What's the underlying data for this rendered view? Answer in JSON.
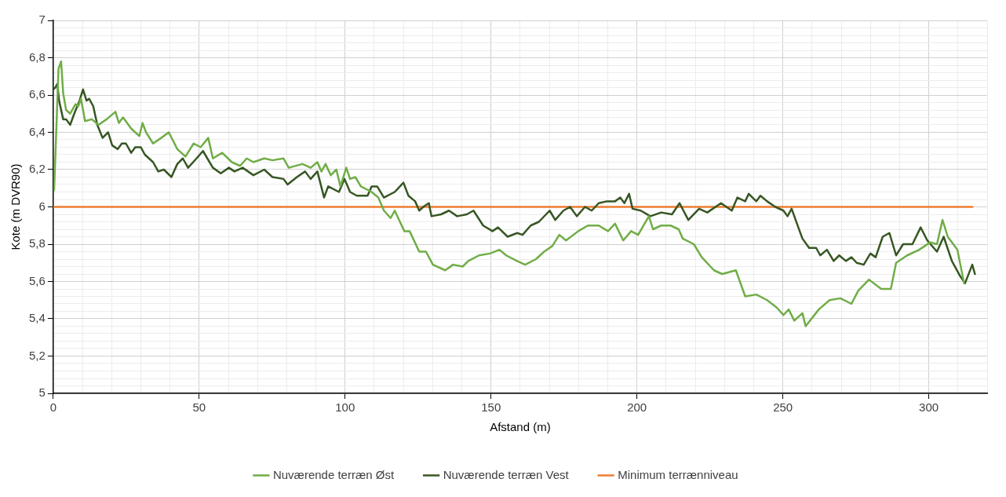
{
  "chart_data": {
    "type": "line",
    "xlabel": "Afstand (m)",
    "ylabel": "Kote (m DVR90)",
    "legend": "bottom",
    "grid": true,
    "marker": "none",
    "line_style": "solid",
    "xlim": [
      0,
      320
    ],
    "xticks": [
      0,
      {
        "value": 10,
        "label": null
      },
      {
        "value": 20,
        "label": null
      },
      {
        "value": 30,
        "label": null
      },
      {
        "value": 40,
        "label": null
      },
      50,
      {
        "value": 60,
        "label": null
      },
      {
        "value": 70,
        "label": null
      },
      {
        "value": 80,
        "label": null
      },
      {
        "value": 90,
        "label": null
      },
      100,
      {
        "value": 110,
        "label": null
      },
      {
        "value": 120,
        "label": null
      },
      {
        "value": 130,
        "label": null
      },
      {
        "value": 140,
        "label": null
      },
      150,
      {
        "value": 160,
        "label": null
      },
      {
        "value": 170,
        "label": null
      },
      {
        "value": 180,
        "label": null
      },
      {
        "value": 190,
        "label": null
      },
      200,
      {
        "value": 210,
        "label": null
      },
      {
        "value": 220,
        "label": null
      },
      {
        "value": 230,
        "label": null
      },
      {
        "value": 240,
        "label": null
      },
      250,
      {
        "value": 260,
        "label": null
      },
      {
        "value": 270,
        "label": null
      },
      {
        "value": 280,
        "label": null
      },
      {
        "value": 290,
        "label": null
      },
      300,
      {
        "value": 310,
        "label": null
      },
      {
        "value": 320,
        "label": null
      }
    ],
    "ylim": [
      5,
      7
    ],
    "yticks": [
      5,
      {
        "value": 5.04,
        "label": null
      },
      {
        "value": 5.08,
        "label": null
      },
      {
        "value": 5.12,
        "label": null
      },
      {
        "value": 5.16,
        "label": null
      },
      {
        "value": 5.2,
        "label": "5,2"
      },
      {
        "value": 5.24,
        "label": null
      },
      {
        "value": 5.28,
        "label": null
      },
      {
        "value": 5.32,
        "label": null
      },
      {
        "value": 5.36,
        "label": null
      },
      {
        "value": 5.4,
        "label": "5,4"
      },
      {
        "value": 5.44,
        "label": null
      },
      {
        "value": 5.48,
        "label": null
      },
      {
        "value": 5.52,
        "label": null
      },
      {
        "value": 5.56,
        "label": null
      },
      {
        "value": 5.6,
        "label": "5,6"
      },
      {
        "value": 5.64,
        "label": null
      },
      {
        "value": 5.68,
        "label": null
      },
      {
        "value": 5.72,
        "label": null
      },
      {
        "value": 5.76,
        "label": null
      },
      {
        "value": 5.8,
        "label": "5,8"
      },
      {
        "value": 5.84,
        "label": null
      },
      {
        "value": 5.88,
        "label": null
      },
      {
        "value": 5.92,
        "label": null
      },
      {
        "value": 5.96,
        "label": null
      },
      6,
      {
        "value": 6.04,
        "label": null
      },
      {
        "value": 6.08,
        "label": null
      },
      {
        "value": 6.12,
        "label": null
      },
      {
        "value": 6.16,
        "label": null
      },
      {
        "value": 6.2,
        "label": "6,2"
      },
      {
        "value": 6.24,
        "label": null
      },
      {
        "value": 6.28,
        "label": null
      },
      {
        "value": 6.32,
        "label": null
      },
      {
        "value": 6.36,
        "label": null
      },
      {
        "value": 6.4,
        "label": "6,4"
      },
      {
        "value": 6.44,
        "label": null
      },
      {
        "value": 6.48,
        "label": null
      },
      {
        "value": 6.52,
        "label": null
      },
      {
        "value": 6.56,
        "label": null
      },
      {
        "value": 6.6,
        "label": "6,6"
      },
      {
        "value": 6.64,
        "label": null
      },
      {
        "value": 6.68,
        "label": null
      },
      {
        "value": 6.72,
        "label": null
      },
      {
        "value": 6.76,
        "label": null
      },
      {
        "value": 6.8,
        "label": "6,8"
      },
      {
        "value": 6.84,
        "label": null
      },
      {
        "value": 6.88,
        "label": null
      },
      {
        "value": 6.92,
        "label": null
      },
      {
        "value": 6.96,
        "label": null
      },
      7
    ],
    "series": [
      {
        "name": "Nuværende terræn Øst",
        "color": "#70ad47",
        "x": [
          0.3,
          0.7,
          1.8,
          2.7,
          3.4,
          4.4,
          5.8,
          7.6,
          8.6,
          9.5,
          10.9,
          13.2,
          15.5,
          18.3,
          21.3,
          22.5,
          23.9,
          26.7,
          29.5,
          30.6,
          31.8,
          34.2,
          37.0,
          39.6,
          42.5,
          45.3,
          48.1,
          50.5,
          53.1,
          54.7,
          57.9,
          61.2,
          64.0,
          66.3,
          68.6,
          72.3,
          75.1,
          78.9,
          80.7,
          85.4,
          88.2,
          90.5,
          91.9,
          93.3,
          95.1,
          97.0,
          98.4,
          100.4,
          101.7,
          103.5,
          105.4,
          109.1,
          111.4,
          113.3,
          115.6,
          117.0,
          120.3,
          122.1,
          125.4,
          127.7,
          130.1,
          134.3,
          137.0,
          140.3,
          142.2,
          145.9,
          149.6,
          152.9,
          155.2,
          158.9,
          161.7,
          165.4,
          168.2,
          171.0,
          173.4,
          175.7,
          179.9,
          183.2,
          186.9,
          190.1,
          192.5,
          195.3,
          198.0,
          200.4,
          204.1,
          205.5,
          208.3,
          211.5,
          214.3,
          215.7,
          219.5,
          222.2,
          226.4,
          229.2,
          233.9,
          237.1,
          240.9,
          244.6,
          247.9,
          250.2,
          252.0,
          253.9,
          256.7,
          257.8,
          262.3,
          266.0,
          269.7,
          273.5,
          275.8,
          279.5,
          283.7,
          287.0,
          288.8,
          292.6,
          296.7,
          300.5,
          302.8,
          304.7,
          306.5,
          308.4,
          309.8,
          312.1
        ],
        "values": [
          6.09,
          6.26,
          6.74,
          6.78,
          6.61,
          6.52,
          6.5,
          6.55,
          6.54,
          6.58,
          6.46,
          6.47,
          6.44,
          6.47,
          6.51,
          6.45,
          6.48,
          6.42,
          6.38,
          6.45,
          6.4,
          6.34,
          6.37,
          6.4,
          6.31,
          6.27,
          6.34,
          6.32,
          6.37,
          6.26,
          6.29,
          6.24,
          6.22,
          6.26,
          6.24,
          6.26,
          6.25,
          6.26,
          6.21,
          6.23,
          6.21,
          6.24,
          6.19,
          6.23,
          6.17,
          6.2,
          6.11,
          6.21,
          6.15,
          6.16,
          6.11,
          6.08,
          6.05,
          5.98,
          5.94,
          5.98,
          5.87,
          5.87,
          5.76,
          5.76,
          5.69,
          5.66,
          5.69,
          5.68,
          5.71,
          5.74,
          5.75,
          5.77,
          5.74,
          5.71,
          5.69,
          5.72,
          5.76,
          5.79,
          5.85,
          5.82,
          5.87,
          5.9,
          5.9,
          5.87,
          5.91,
          5.82,
          5.87,
          5.85,
          5.95,
          5.88,
          5.9,
          5.9,
          5.88,
          5.83,
          5.8,
          5.73,
          5.66,
          5.64,
          5.66,
          5.52,
          5.53,
          5.5,
          5.46,
          5.42,
          5.45,
          5.39,
          5.43,
          5.36,
          5.45,
          5.5,
          5.51,
          5.48,
          5.55,
          5.61,
          5.56,
          5.56,
          5.7,
          5.74,
          5.77,
          5.81,
          5.8,
          5.93,
          5.84,
          5.8,
          5.77,
          5.59
        ]
      },
      {
        "name": "Nuværende terræn Vest",
        "color": "#375623",
        "x": [
          0,
          0.7,
          1.4,
          2.0,
          3.4,
          4.4,
          5.8,
          7.2,
          9.0,
          10.2,
          11.4,
          12.3,
          13.7,
          15.1,
          16.9,
          18.8,
          20.2,
          22.1,
          23.5,
          24.9,
          26.7,
          28.1,
          30.0,
          31.4,
          34.2,
          36.0,
          37.9,
          40.5,
          42.5,
          44.4,
          46.2,
          49.1,
          51.3,
          52.8,
          54.7,
          57.4,
          60.2,
          62.1,
          64.9,
          68.6,
          72.3,
          75.1,
          78.9,
          80.3,
          83.5,
          86.3,
          88.2,
          90.5,
          92.8,
          94.2,
          97.9,
          99.8,
          101.7,
          104.0,
          107.7,
          109.1,
          111.0,
          113.3,
          117.0,
          120.0,
          121.7,
          124.0,
          125.4,
          126.8,
          128.7,
          129.6,
          132.9,
          135.6,
          138.4,
          141.7,
          144.0,
          147.3,
          150.5,
          152.4,
          155.7,
          159.0,
          160.8,
          163.6,
          166.4,
          170.1,
          172.0,
          174.8,
          177.1,
          179.4,
          182.2,
          184.5,
          186.9,
          189.7,
          192.5,
          194.3,
          195.7,
          197.3,
          198.5,
          201.3,
          204.6,
          208.3,
          212.0,
          214.6,
          217.6,
          221.3,
          224.1,
          228.8,
          232.5,
          234.4,
          237.1,
          238.3,
          240.9,
          242.3,
          244.6,
          247.4,
          250.2,
          251.6,
          253.0,
          255.3,
          256.7,
          259.0,
          261.4,
          262.8,
          265.1,
          267.4,
          269.3,
          271.6,
          273.5,
          275.3,
          277.7,
          280.0,
          281.8,
          284.2,
          286.5,
          288.8,
          291.2,
          294.4,
          297.2,
          299.5,
          302.8,
          305.1,
          307.9,
          310.7,
          312.4,
          314.9,
          315.8
        ],
        "values": [
          6.63,
          6.64,
          6.66,
          6.57,
          6.47,
          6.47,
          6.44,
          6.5,
          6.57,
          6.63,
          6.57,
          6.58,
          6.54,
          6.44,
          6.37,
          6.4,
          6.33,
          6.31,
          6.34,
          6.34,
          6.29,
          6.32,
          6.32,
          6.28,
          6.24,
          6.19,
          6.2,
          6.16,
          6.23,
          6.26,
          6.21,
          6.26,
          6.3,
          6.26,
          6.21,
          6.18,
          6.21,
          6.19,
          6.21,
          6.17,
          6.2,
          6.16,
          6.15,
          6.12,
          6.16,
          6.19,
          6.15,
          6.19,
          6.05,
          6.11,
          6.08,
          6.15,
          6.08,
          6.06,
          6.06,
          6.11,
          6.11,
          6.05,
          6.08,
          6.13,
          6.06,
          6.03,
          5.98,
          6.0,
          6.02,
          5.95,
          5.96,
          5.98,
          5.95,
          5.96,
          5.98,
          5.9,
          5.87,
          5.89,
          5.84,
          5.86,
          5.85,
          5.9,
          5.92,
          5.98,
          5.93,
          5.98,
          6.0,
          5.95,
          6.0,
          5.98,
          6.02,
          6.03,
          6.03,
          6.05,
          6.02,
          6.07,
          5.99,
          5.98,
          5.95,
          5.97,
          5.96,
          6.02,
          5.93,
          5.99,
          5.97,
          6.02,
          5.98,
          6.05,
          6.03,
          6.07,
          6.03,
          6.06,
          6.03,
          6.0,
          5.98,
          5.95,
          5.99,
          5.89,
          5.83,
          5.78,
          5.78,
          5.74,
          5.77,
          5.71,
          5.74,
          5.71,
          5.73,
          5.7,
          5.69,
          5.75,
          5.73,
          5.84,
          5.86,
          5.74,
          5.8,
          5.8,
          5.89,
          5.82,
          5.76,
          5.84,
          5.71,
          5.63,
          5.59,
          5.69,
          5.64
        ]
      },
      {
        "name": "Minimum terrænniveau",
        "color": "#ed7d31",
        "x": [
          0,
          315
        ],
        "values": [
          6,
          6
        ]
      }
    ]
  }
}
